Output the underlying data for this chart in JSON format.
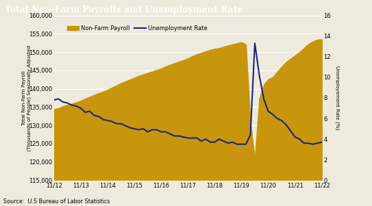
{
  "title": "Total Non-Farm Payrolls and Unemployment Rate",
  "title_bg": "#4a4a4a",
  "title_color": "#ffffff",
  "ylabel_left": "Total Non-Farm Payroll\n(Thousands of People) Seasonally Adjusted",
  "ylabel_right": "Unemployement Rate (%)",
  "source": "Source:  U.S Bureau of Labor Statistics",
  "ylim_left": [
    115000,
    160000
  ],
  "ylim_right": [
    0,
    16
  ],
  "yticks_left": [
    115000,
    120000,
    125000,
    130000,
    135000,
    140000,
    145000,
    150000,
    155000,
    160000
  ],
  "yticks_right": [
    0,
    2,
    4,
    6,
    8,
    10,
    12,
    14,
    16
  ],
  "payroll_color": "#C8960C",
  "unemployment_color": "#1a237e",
  "background_color": "#eeeade",
  "grid_color": "#d8d4c8",
  "payroll": [
    134403,
    134700,
    135200,
    135600,
    135900,
    136300,
    136700,
    137300,
    137800,
    138300,
    138800,
    139200,
    139700,
    140300,
    140900,
    141500,
    142000,
    142500,
    143000,
    143500,
    143900,
    144300,
    144700,
    145100,
    145500,
    146100,
    146500,
    147000,
    147400,
    147800,
    148300,
    148900,
    149400,
    149800,
    150200,
    150600,
    150900,
    151100,
    151500,
    151800,
    152100,
    152400,
    152700,
    152100,
    130900,
    121000,
    137300,
    141100,
    142600,
    143100,
    144600,
    146000,
    147300,
    148200,
    149100,
    150000,
    151100,
    152200,
    152900,
    153400,
    153500
  ],
  "unemployment": [
    7.8,
    7.9,
    7.6,
    7.5,
    7.3,
    7.2,
    7.0,
    6.6,
    6.7,
    6.3,
    6.2,
    5.9,
    5.8,
    5.7,
    5.5,
    5.5,
    5.3,
    5.1,
    5.0,
    4.9,
    5.0,
    4.7,
    4.9,
    4.9,
    4.7,
    4.7,
    4.5,
    4.3,
    4.3,
    4.2,
    4.1,
    4.1,
    4.1,
    3.8,
    4.0,
    3.7,
    3.7,
    4.0,
    3.8,
    3.6,
    3.7,
    3.5,
    3.5,
    3.5,
    4.4,
    13.3,
    10.2,
    7.9,
    6.7,
    6.4,
    6.0,
    5.8,
    5.4,
    4.8,
    4.2,
    4.0,
    3.6,
    3.6,
    3.5,
    3.6,
    3.7
  ],
  "xtick_labels": [
    "11/12",
    "11/13",
    "11/14",
    "11/15",
    "11/16",
    "11/17",
    "11/18",
    "11/19",
    "11/20",
    "11/21",
    "11/22"
  ],
  "xtick_positions": [
    0,
    6,
    12,
    18,
    24,
    30,
    36,
    42,
    48,
    54,
    60
  ]
}
